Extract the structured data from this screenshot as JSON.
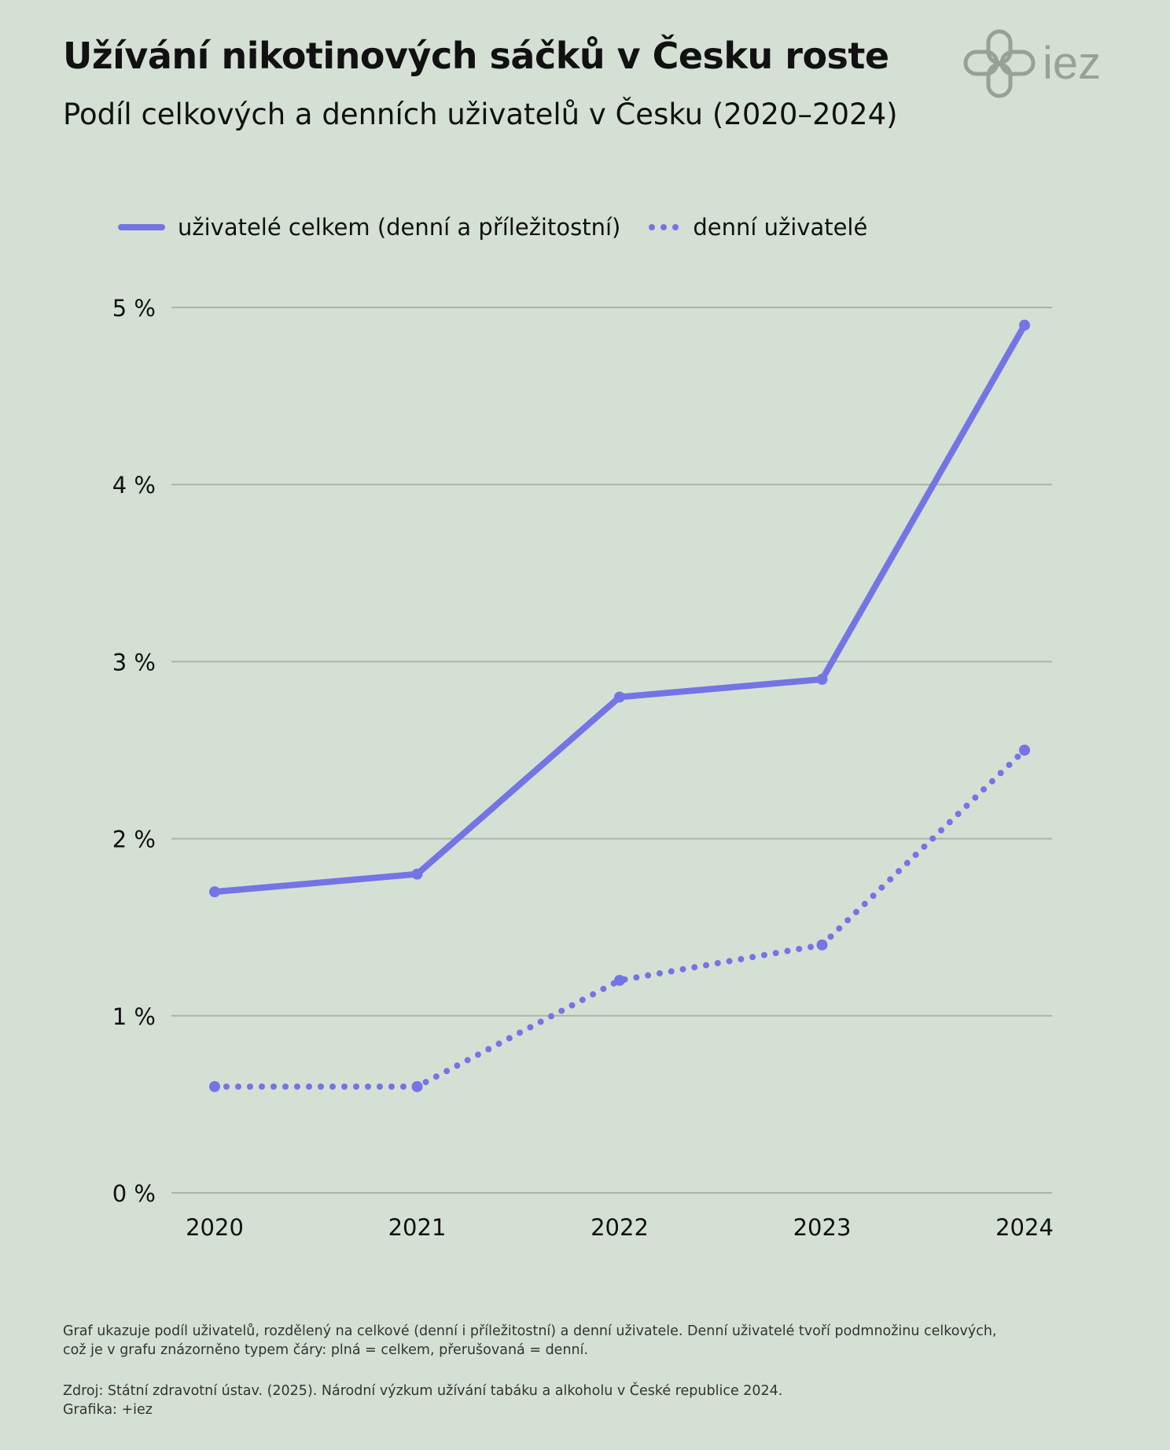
{
  "header": {
    "title": "Užívání nikotinových sáčků v Česku roste",
    "subtitle": "Podíl celkových a denních uživatelů v Česku (2020–2024)",
    "logo_text": "iez"
  },
  "colors": {
    "background": "#d5e0d4",
    "series": "#7475e4",
    "grid": "#a9b5a8",
    "logo": "#95a294"
  },
  "chart_data": {
    "type": "line",
    "x": [
      "2020",
      "2021",
      "2022",
      "2023",
      "2024"
    ],
    "series": [
      {
        "name": "uživatelé celkem (denní a příležitostní)",
        "style": "solid",
        "values": [
          1.7,
          1.8,
          2.8,
          2.9,
          4.9
        ]
      },
      {
        "name": "denní uživatelé",
        "style": "dotted",
        "values": [
          0.6,
          0.6,
          1.2,
          1.4,
          2.5
        ]
      }
    ],
    "yticks": [
      0,
      1,
      2,
      3,
      4,
      5
    ],
    "ytick_labels": [
      "0 %",
      "1 %",
      "2 %",
      "3 %",
      "4 %",
      "5 %"
    ],
    "ylim": [
      0,
      5
    ],
    "grid": "horizontal",
    "legend_position": "top-left"
  },
  "footnote": {
    "lines": [
      "Graf ukazuje podíl uživatelů, rozdělený na celkové (denní i příležitostní) a denní uživatele. Denní uživatelé tvoří podmnožinu celkových,",
      "což je v grafu znázorněno typem čáry: plná = celkem, přerušovaná = denní."
    ],
    "source": "Zdroj: Státní zdravotní ústav. (2025). Národní výzkum užívání tabáku a alkoholu v České republice 2024.",
    "credit": "Grafika: +iez"
  }
}
